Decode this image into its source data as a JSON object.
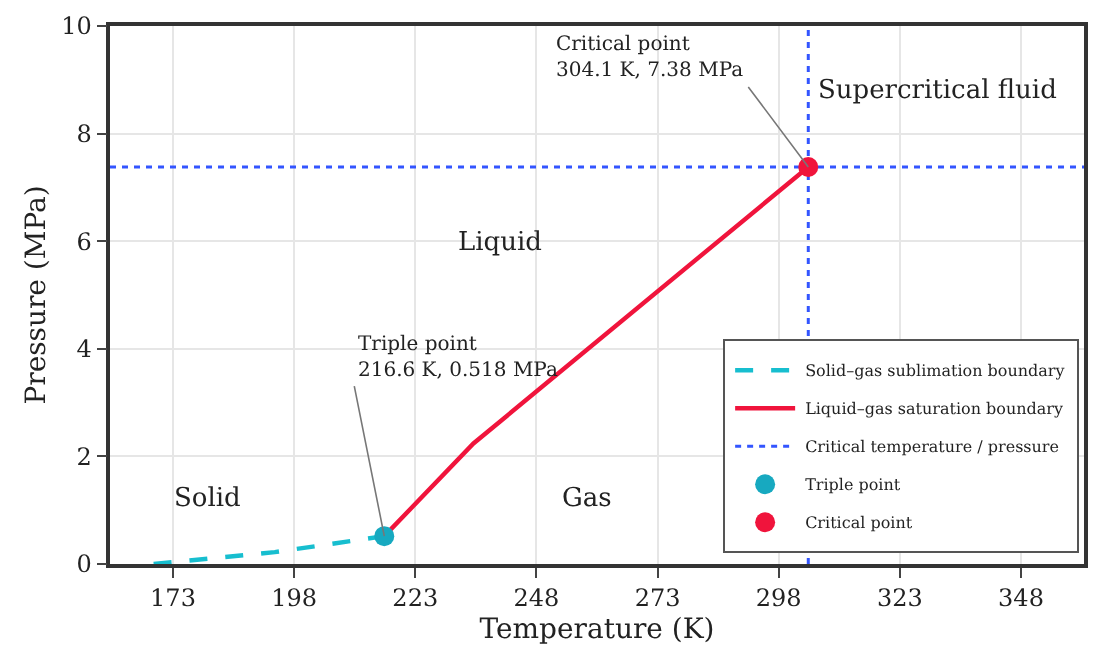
{
  "chart_data": {
    "type": "line",
    "xlabel": "Temperature (K)",
    "ylabel": "Pressure (MPa)",
    "xlim": [
      160,
      361
    ],
    "xticks": [
      173,
      198,
      223,
      248,
      273,
      298,
      323,
      348
    ],
    "ylim": [
      0,
      10
    ],
    "yticks": [
      0,
      2,
      4,
      6,
      8,
      10
    ],
    "grid": true,
    "legend": "bottom right",
    "series": [
      {
        "name": "Solid–gas sublimation boundary",
        "line_style": "dashed",
        "color": "#17becf",
        "x": [
          169,
          194,
          216.6
        ],
        "values": [
          0,
          0.22,
          0.518
        ]
      },
      {
        "name": "Liquid–gas saturation boundary",
        "line_style": "solid",
        "color": "#f0143c",
        "x": [
          216.6,
          235,
          304.1
        ],
        "values": [
          0.518,
          2.24,
          7.38
        ]
      },
      {
        "name": "Triple point",
        "type": "scatter",
        "marker": "circle",
        "color": "#17a9c0",
        "x": [
          216.6
        ],
        "values": [
          0.518
        ]
      },
      {
        "name": "Critical point",
        "type": "scatter",
        "marker": "circle",
        "color": "#f0143c",
        "x": [
          304.1
        ],
        "values": [
          7.38
        ]
      }
    ],
    "ref_lines": [
      {
        "axis": "x",
        "value": 304.1,
        "label": "Critical temperature / pressure",
        "color": "#3355ff",
        "line_style": "dotted"
      },
      {
        "axis": "y",
        "value": 7.38,
        "color": "#3355ff",
        "line_style": "dotted"
      }
    ],
    "annotations": [
      {
        "text": "Triple point\n216.6 K, 0.518 MPa",
        "x": 216.6,
        "y": 0.518
      },
      {
        "text": "Critical point\n304.1 K, 7.38 MPa",
        "x": 304.1,
        "y": 7.38
      },
      "Solid",
      "Liquid",
      "Gas",
      "Supercritical fluid"
    ]
  }
}
